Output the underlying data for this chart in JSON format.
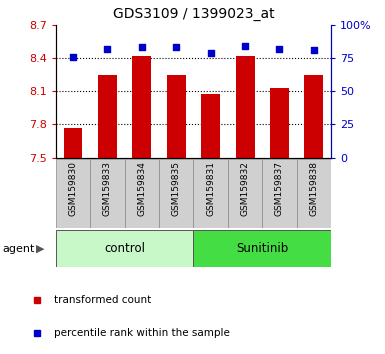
{
  "title": "GDS3109 / 1399023_at",
  "samples": [
    "GSM159830",
    "GSM159833",
    "GSM159834",
    "GSM159835",
    "GSM159831",
    "GSM159832",
    "GSM159837",
    "GSM159838"
  ],
  "bar_values": [
    7.77,
    8.25,
    8.42,
    8.25,
    8.07,
    8.42,
    8.13,
    8.25
  ],
  "percentile_values": [
    76,
    82,
    83,
    83,
    79,
    84,
    82,
    81
  ],
  "groups": [
    {
      "label": "control",
      "indices": [
        0,
        3
      ],
      "color": "#c8f8c8"
    },
    {
      "label": "Sunitinib",
      "indices": [
        4,
        7
      ],
      "color": "#44dd44"
    }
  ],
  "bar_color": "#cc0000",
  "dot_color": "#0000cc",
  "ylim_left": [
    7.5,
    8.7
  ],
  "ylim_right": [
    0,
    100
  ],
  "yticks_left": [
    7.5,
    7.8,
    8.1,
    8.4,
    8.7
  ],
  "yticks_right": [
    0,
    25,
    50,
    75,
    100
  ],
  "ytick_labels_right": [
    "0",
    "25",
    "50",
    "75",
    "100%"
  ],
  "grid_values": [
    7.8,
    8.1,
    8.4
  ],
  "bar_width": 0.55,
  "agent_label": "agent",
  "legend_bar_label": "transformed count",
  "legend_dot_label": "percentile rank within the sample",
  "tick_label_area_color": "#d0d0d0",
  "sample_box_edge_color": "#888888"
}
